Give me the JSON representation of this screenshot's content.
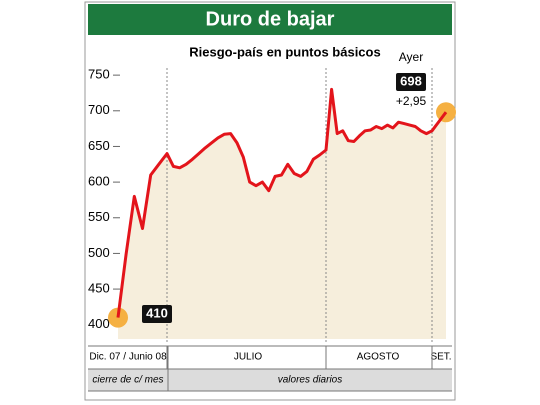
{
  "chart_data": {
    "type": "line",
    "title": "Duro de bajar",
    "subtitle": "Riesgo-país en puntos básicos",
    "color": "#e3141b",
    "area_color": "#f6eedc",
    "title_color": "#1d7a3e",
    "ylim": [
      380,
      760
    ],
    "yticks": [
      400,
      450,
      500,
      550,
      600,
      650,
      700,
      750
    ],
    "sections": [
      {
        "label": "Dic. 07 / Junio 08",
        "values": [
          410,
          500,
          580,
          535,
          610,
          625,
          640
        ]
      },
      {
        "label": "JULIO",
        "values": [
          622,
          620,
          625,
          632,
          640,
          648,
          655,
          662,
          667,
          668,
          655,
          635,
          600,
          595,
          600,
          588,
          608,
          610,
          625,
          612,
          608,
          615,
          632,
          638,
          645
        ]
      },
      {
        "label": "AGOSTO",
        "values": [
          730,
          668,
          672,
          658,
          657,
          665,
          672,
          673,
          678,
          675,
          680,
          676,
          684,
          682,
          680,
          678,
          672,
          668,
          672
        ]
      },
      {
        "label": "SET.",
        "values": [
          685,
          698
        ]
      }
    ],
    "row_labels": [
      "cierre de c/ mes",
      "valores diarios"
    ],
    "annotations": {
      "start_label": "410",
      "end_caption": "Ayer",
      "end_label": "698",
      "change": "+2,95"
    }
  }
}
